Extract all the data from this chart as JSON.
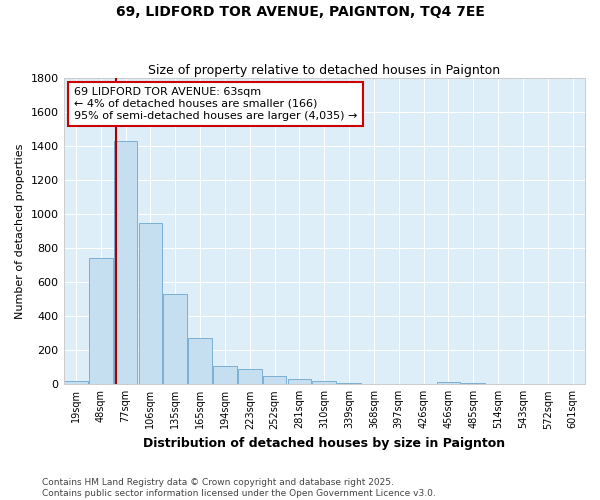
{
  "title": "69, LIDFORD TOR AVENUE, PAIGNTON, TQ4 7EE",
  "subtitle": "Size of property relative to detached houses in Paignton",
  "xlabel": "Distribution of detached houses by size in Paignton",
  "ylabel": "Number of detached properties",
  "categories": [
    "19sqm",
    "48sqm",
    "77sqm",
    "106sqm",
    "135sqm",
    "165sqm",
    "194sqm",
    "223sqm",
    "252sqm",
    "281sqm",
    "310sqm",
    "339sqm",
    "368sqm",
    "397sqm",
    "426sqm",
    "456sqm",
    "485sqm",
    "514sqm",
    "543sqm",
    "572sqm",
    "601sqm"
  ],
  "values": [
    20,
    740,
    1430,
    950,
    530,
    270,
    105,
    90,
    50,
    30,
    20,
    5,
    3,
    2,
    2,
    15,
    5,
    2,
    1,
    1,
    1
  ],
  "bar_color": "#c5dff0",
  "bar_edge_color": "#7aafd4",
  "plot_bg_color": "#ddeef8",
  "fig_bg_color": "#ffffff",
  "grid_color": "#ffffff",
  "vline_color": "#aa0000",
  "vline_x": 1.62,
  "annotation_text": "69 LIDFORD TOR AVENUE: 63sqm\n← 4% of detached houses are smaller (166)\n95% of semi-detached houses are larger (4,035) →",
  "annotation_box_facecolor": "#ffffff",
  "annotation_box_edgecolor": "#cc0000",
  "footnote": "Contains HM Land Registry data © Crown copyright and database right 2025.\nContains public sector information licensed under the Open Government Licence v3.0.",
  "ylim": [
    0,
    1800
  ],
  "yticks": [
    0,
    200,
    400,
    600,
    800,
    1000,
    1200,
    1400,
    1600,
    1800
  ],
  "figsize": [
    6.0,
    5.0
  ],
  "dpi": 100
}
